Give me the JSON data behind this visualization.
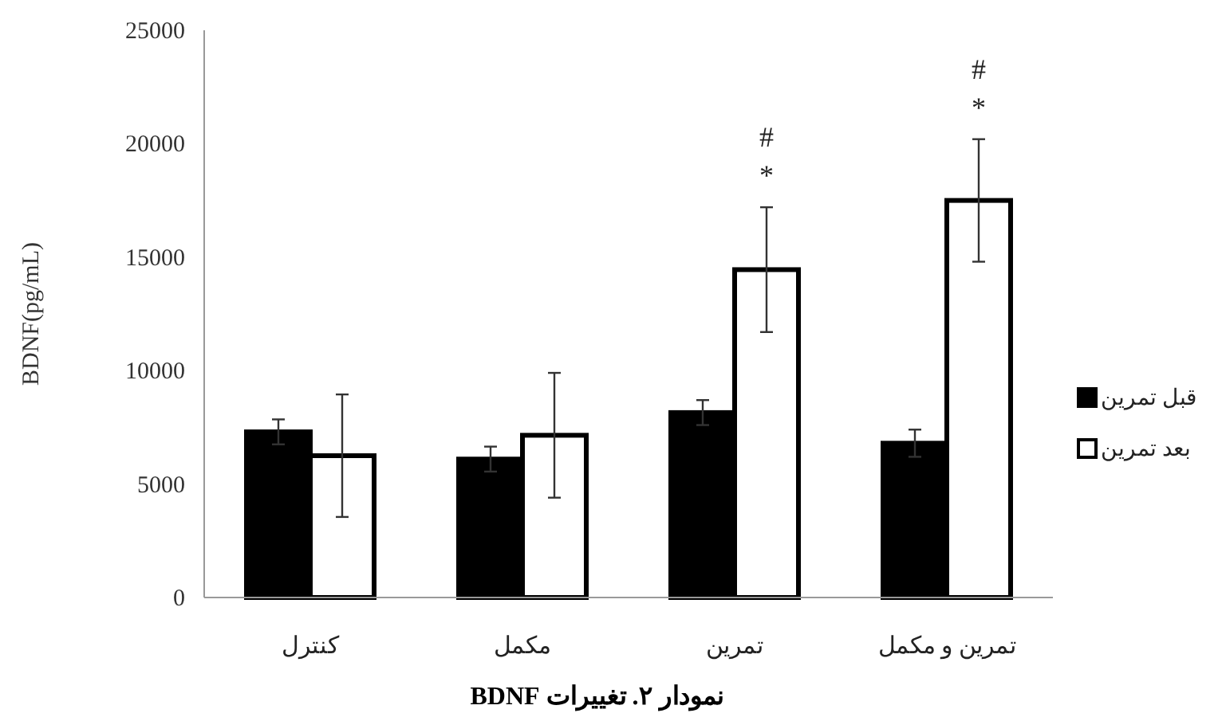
{
  "chart_data": {
    "type": "bar",
    "title": "نمودار ۲. تغییرات BDNF",
    "ylabel": "BDNF(pg/mL)",
    "categories": [
      "کنترل",
      "مکمل",
      "تمرین",
      "تمرین و مکمل"
    ],
    "series": [
      {
        "name": "قبل تمرین",
        "color": "#000000",
        "values": [
          7300,
          6100,
          8150,
          6800
        ],
        "errors": [
          550,
          550,
          550,
          600
        ]
      },
      {
        "name": "بعد تمرین",
        "color": "#ffffff",
        "values": [
          6250,
          7150,
          14450,
          17500
        ],
        "errors": [
          2700,
          2750,
          2750,
          2700
        ],
        "value_labels": [
          null,
          null,
          "#\n*",
          "#\n*"
        ]
      }
    ],
    "ylim": [
      0,
      25000
    ],
    "yticks": [
      0,
      5000,
      10000,
      15000,
      20000,
      25000
    ],
    "legend": "right"
  }
}
